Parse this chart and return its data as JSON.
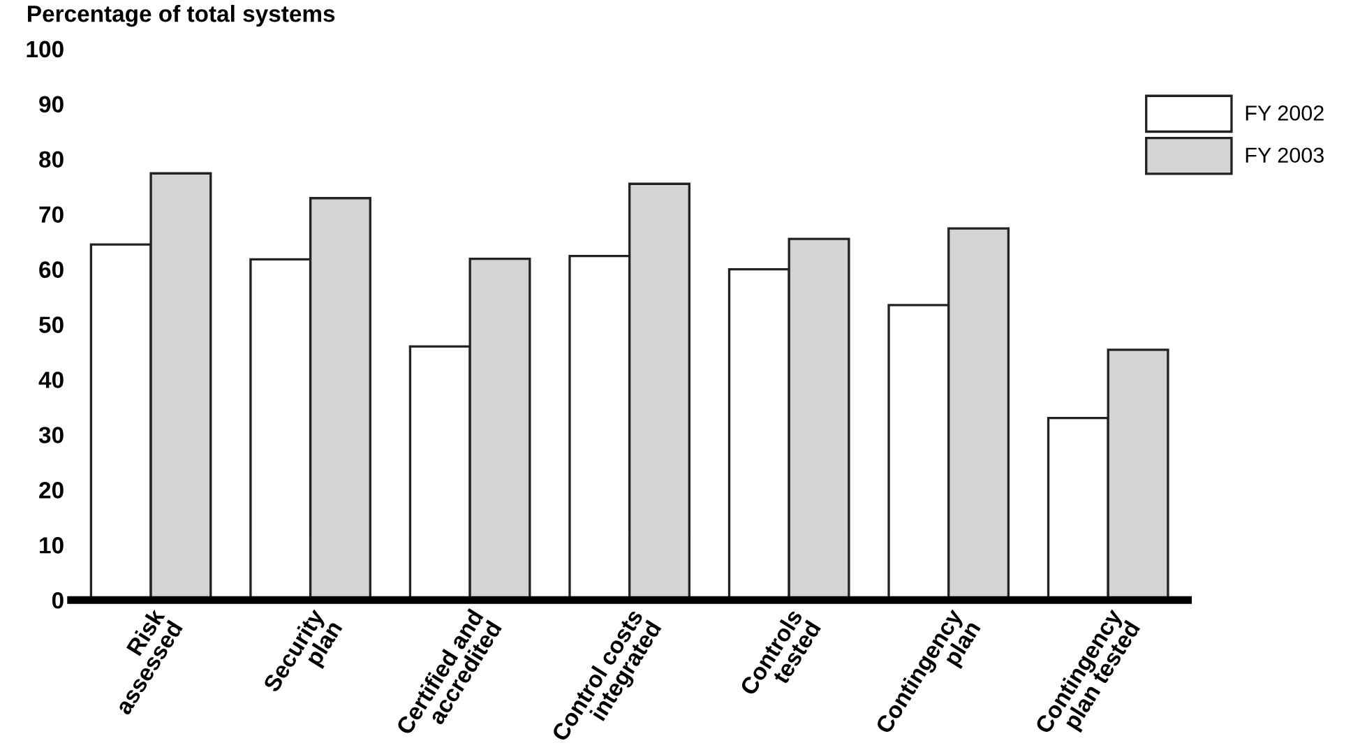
{
  "chart_data": {
    "type": "bar",
    "ylabel": "Percentage of total systems",
    "categories": [
      "Risk\nassessed",
      "Security\nplan",
      "Certified and\naccredited",
      "Control costs\nintegrated",
      "Controls\ntested",
      "Contingency\nplan",
      "Contingency\nplan tested"
    ],
    "series": [
      {
        "name": "FY 2002",
        "color": "#ffffff",
        "values": [
          64.5,
          61.8,
          46.0,
          62.4,
          60.0,
          53.5,
          33.0
        ]
      },
      {
        "name": "FY 2003",
        "color": "#d4d4d4",
        "values": [
          77.4,
          72.9,
          61.9,
          75.5,
          65.5,
          67.4,
          45.4
        ]
      }
    ],
    "ylim": [
      0,
      100
    ],
    "yticks": [
      0,
      10,
      20,
      30,
      40,
      50,
      60,
      70,
      80,
      90,
      100
    ],
    "grid": false,
    "legend": "top right"
  }
}
